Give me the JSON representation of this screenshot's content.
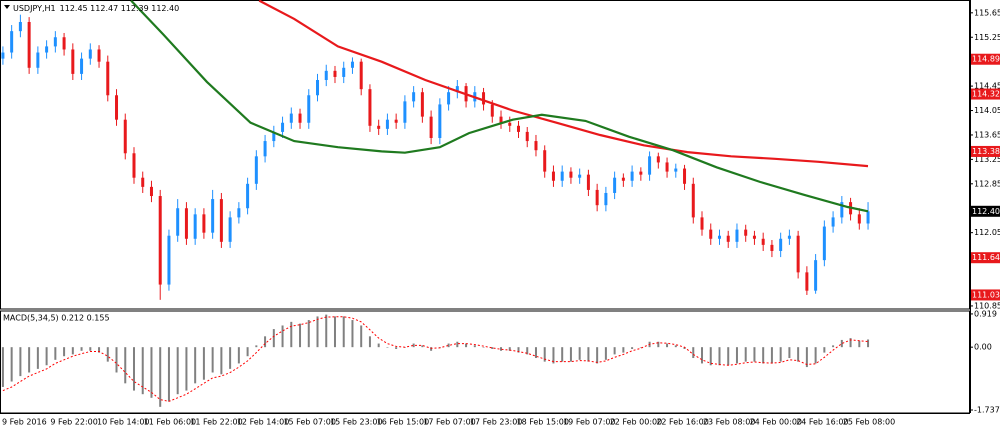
{
  "chart_data": [
    {
      "type": "candlestick",
      "title": "USDJPY,H1",
      "quote": "112.45 112.47 112.39 112.40",
      "x": [
        0,
        3,
        6,
        9,
        12,
        15,
        18,
        21,
        24,
        27,
        30,
        33,
        36,
        39,
        42,
        45,
        48,
        51,
        54,
        57,
        60,
        63,
        66,
        69,
        72,
        75,
        78,
        81,
        84,
        87,
        90,
        93,
        96,
        99,
        102,
        105,
        108,
        111,
        114,
        117,
        120,
        123,
        126,
        129,
        132,
        135,
        138,
        141,
        144,
        147,
        150,
        153,
        156,
        159,
        162,
        165,
        168,
        171,
        174,
        177,
        180,
        183,
        186,
        189,
        192,
        195,
        198,
        201,
        204,
        207,
        210,
        213,
        216,
        219,
        222,
        225,
        228,
        231,
        234,
        237,
        240,
        243,
        246,
        249,
        252,
        255,
        258,
        261,
        264,
        267,
        270,
        273,
        276,
        279,
        282,
        285,
        288,
        291,
        294,
        297
      ],
      "open": [
        114.9,
        115.0,
        115.35,
        115.5,
        114.75,
        115.0,
        115.1,
        115.25,
        115.05,
        114.65,
        114.9,
        115.05,
        114.85,
        114.3,
        113.9,
        113.35,
        112.95,
        112.8,
        112.65,
        111.2,
        112.0,
        112.45,
        111.95,
        112.35,
        112.05,
        112.6,
        111.9,
        112.3,
        112.45,
        112.85,
        113.3,
        113.55,
        113.7,
        113.85,
        114.0,
        113.85,
        114.3,
        114.55,
        114.7,
        114.6,
        114.75,
        114.85,
        114.4,
        113.8,
        113.75,
        113.9,
        113.85,
        114.2,
        114.35,
        113.95,
        113.6,
        114.15,
        114.35,
        114.45,
        114.2,
        114.35,
        114.15,
        113.95,
        113.85,
        113.8,
        113.7,
        113.55,
        113.4,
        113.05,
        112.9,
        113.05,
        112.95,
        113.0,
        112.75,
        112.5,
        112.7,
        112.95,
        112.9,
        113.05,
        113.0,
        113.3,
        113.2,
        113.05,
        113.1,
        112.85,
        112.3,
        112.1,
        111.95,
        112.0,
        111.9,
        112.1,
        112.0,
        111.95,
        111.85,
        111.75,
        111.95,
        112.0,
        111.4,
        111.1,
        111.6,
        112.15,
        112.3,
        112.55,
        112.35,
        112.2
      ],
      "high": [
        115.1,
        115.45,
        115.62,
        115.58,
        115.1,
        115.2,
        115.35,
        115.32,
        115.15,
        115.0,
        115.15,
        115.12,
        114.95,
        114.4,
        114.0,
        113.45,
        113.05,
        112.9,
        112.75,
        112.1,
        112.6,
        112.55,
        112.45,
        112.45,
        112.75,
        112.7,
        112.4,
        112.55,
        112.95,
        113.4,
        113.65,
        113.8,
        113.95,
        114.1,
        114.08,
        114.4,
        114.65,
        114.8,
        114.78,
        114.85,
        114.92,
        114.9,
        114.48,
        113.9,
        114.0,
        114.0,
        114.3,
        114.45,
        114.42,
        114.05,
        114.25,
        114.45,
        114.55,
        114.5,
        114.45,
        114.42,
        114.22,
        114.05,
        113.95,
        113.88,
        113.78,
        113.65,
        113.48,
        113.15,
        113.15,
        113.12,
        113.1,
        113.08,
        112.85,
        112.8,
        113.05,
        113.02,
        113.15,
        113.12,
        113.38,
        113.36,
        113.28,
        113.18,
        113.16,
        112.95,
        112.4,
        112.2,
        112.1,
        112.08,
        112.2,
        112.18,
        112.08,
        112.05,
        111.93,
        112.05,
        112.1,
        112.08,
        111.5,
        111.7,
        112.25,
        112.4,
        112.65,
        112.62,
        112.45,
        112.55
      ],
      "low": [
        114.8,
        114.9,
        115.25,
        114.65,
        114.65,
        114.9,
        115.0,
        114.95,
        114.55,
        114.55,
        114.8,
        114.75,
        114.2,
        113.8,
        113.25,
        112.85,
        112.7,
        112.55,
        110.95,
        111.1,
        111.9,
        111.85,
        111.85,
        111.95,
        111.95,
        111.8,
        111.8,
        112.2,
        112.35,
        112.75,
        113.2,
        113.45,
        113.6,
        113.75,
        113.75,
        113.75,
        114.2,
        114.45,
        114.5,
        114.5,
        114.65,
        114.3,
        113.7,
        113.65,
        113.65,
        113.75,
        113.75,
        114.1,
        113.85,
        113.5,
        113.5,
        114.05,
        114.25,
        114.1,
        114.1,
        114.05,
        113.85,
        113.75,
        113.7,
        113.6,
        113.45,
        113.3,
        112.95,
        112.8,
        112.8,
        112.85,
        112.85,
        112.65,
        112.4,
        112.4,
        112.6,
        112.8,
        112.8,
        112.9,
        112.9,
        113.1,
        112.95,
        112.95,
        112.75,
        112.2,
        112.0,
        111.85,
        111.85,
        111.8,
        111.8,
        111.9,
        111.85,
        111.75,
        111.65,
        111.65,
        111.85,
        111.3,
        111.03,
        111.05,
        111.5,
        112.05,
        112.2,
        112.25,
        112.1,
        112.1
      ],
      "close": [
        115.0,
        115.35,
        115.5,
        114.75,
        115.0,
        115.1,
        115.25,
        115.05,
        114.65,
        114.9,
        115.05,
        114.85,
        114.3,
        113.9,
        113.35,
        112.95,
        112.8,
        112.65,
        111.2,
        112.0,
        112.45,
        111.95,
        112.35,
        112.05,
        112.6,
        111.9,
        112.3,
        112.45,
        112.85,
        113.3,
        113.55,
        113.7,
        113.85,
        114.0,
        113.85,
        114.3,
        114.55,
        114.7,
        114.6,
        114.75,
        114.85,
        114.4,
        113.8,
        113.75,
        113.9,
        113.85,
        114.2,
        114.35,
        113.95,
        113.6,
        114.15,
        114.35,
        114.45,
        114.2,
        114.35,
        114.15,
        113.95,
        113.85,
        113.8,
        113.7,
        113.55,
        113.4,
        113.05,
        112.9,
        113.05,
        112.95,
        113.0,
        112.75,
        112.5,
        112.7,
        112.95,
        112.9,
        113.05,
        113.0,
        113.3,
        113.2,
        113.05,
        113.1,
        112.85,
        112.3,
        112.1,
        111.95,
        112.0,
        111.9,
        112.1,
        112.0,
        111.95,
        111.85,
        111.75,
        111.95,
        112.0,
        111.4,
        111.1,
        111.6,
        112.15,
        112.3,
        112.55,
        112.35,
        112.2,
        112.4
      ],
      "up_color": "#1e90ff",
      "down_color": "#e8191c",
      "lines": [
        {
          "color": "#e8191c",
          "x": [
            88,
            100,
            115,
            130,
            145,
            160,
            175,
            190,
            205,
            220,
            235,
            250,
            265,
            280,
            297
          ],
          "values": [
            115.85,
            115.55,
            115.1,
            114.85,
            114.55,
            114.3,
            114.05,
            113.85,
            113.65,
            113.48,
            113.37,
            113.3,
            113.26,
            113.21,
            113.14
          ]
        },
        {
          "color": "#1f7a1f",
          "x": [
            44,
            55,
            70,
            85,
            100,
            115,
            130,
            138,
            150,
            160,
            175,
            185,
            200,
            215,
            230,
            245,
            260,
            275,
            290,
            297
          ],
          "values": [
            115.85,
            115.3,
            114.52,
            113.85,
            113.55,
            113.45,
            113.38,
            113.36,
            113.45,
            113.68,
            113.9,
            113.98,
            113.88,
            113.62,
            113.4,
            113.12,
            112.88,
            112.67,
            112.47,
            112.4
          ]
        }
      ],
      "levels": [
        114.89,
        114.32,
        113.38,
        111.64,
        111.03
      ],
      "level_color": "#e8191c",
      "last_price": {
        "value": 112.4,
        "label": "112.40"
      },
      "last_price_color": "#000000",
      "xlim": [
        -1,
        332
      ],
      "xticks": [
        {
          "value": 0,
          "label": "9 Feb 2016"
        },
        {
          "value": 17,
          "label": "9 Feb 22:00"
        },
        {
          "value": 33,
          "label": "10 Feb 14:00"
        },
        {
          "value": 49,
          "label": "11 Feb 06:00"
        },
        {
          "value": 65,
          "label": "11 Feb 22:00"
        },
        {
          "value": 81,
          "label": "12 Feb 14:00"
        },
        {
          "value": 97,
          "label": "15 Feb 07:00"
        },
        {
          "value": 113,
          "label": "15 Feb 23:00"
        },
        {
          "value": 129,
          "label": "16 Feb 15:00"
        },
        {
          "value": 145,
          "label": "17 Feb 07:00"
        },
        {
          "value": 161,
          "label": "17 Feb 23:00"
        },
        {
          "value": 177,
          "label": "18 Feb 15:00"
        },
        {
          "value": 193,
          "label": "19 Feb 07:00"
        },
        {
          "value": 209,
          "label": "22 Feb 00:00"
        },
        {
          "value": 225,
          "label": "22 Feb 16:00"
        },
        {
          "value": 241,
          "label": "23 Feb 08:00"
        },
        {
          "value": 257,
          "label": "24 Feb 00:00"
        },
        {
          "value": 273,
          "label": "24 Feb 16:00"
        },
        {
          "value": 289,
          "label": "25 Feb 08:00"
        }
      ],
      "ylim": [
        110.8,
        115.86
      ],
      "yticks": [
        115.65,
        115.25,
        114.45,
        114.05,
        113.65,
        113.25,
        112.85,
        112.05,
        110.85
      ],
      "grid": true
    },
    {
      "type": "macd",
      "title": "MACD(5,34,5) 0.212 0.155",
      "histogram": [
        -1.1,
        -0.95,
        -0.8,
        -0.7,
        -0.6,
        -0.5,
        -0.35,
        -0.25,
        -0.2,
        -0.1,
        -0.1,
        -0.15,
        -0.4,
        -0.7,
        -1.0,
        -1.2,
        -1.3,
        -1.4,
        -1.65,
        -1.5,
        -1.3,
        -1.2,
        -1.0,
        -0.9,
        -0.7,
        -0.75,
        -0.6,
        -0.45,
        -0.25,
        0.05,
        0.3,
        0.5,
        0.6,
        0.7,
        0.65,
        0.75,
        0.85,
        0.9,
        0.85,
        0.85,
        0.75,
        0.6,
        0.3,
        0.1,
        0.0,
        -0.05,
        0.0,
        0.1,
        0.05,
        -0.1,
        0.0,
        0.1,
        0.15,
        0.1,
        0.05,
        0.0,
        -0.05,
        -0.1,
        -0.1,
        -0.15,
        -0.2,
        -0.3,
        -0.4,
        -0.45,
        -0.4,
        -0.4,
        -0.35,
        -0.4,
        -0.45,
        -0.35,
        -0.2,
        -0.15,
        -0.05,
        0.0,
        0.15,
        0.15,
        0.1,
        0.05,
        -0.05,
        -0.3,
        -0.45,
        -0.5,
        -0.5,
        -0.5,
        -0.45,
        -0.4,
        -0.4,
        -0.45,
        -0.45,
        -0.4,
        -0.3,
        -0.4,
        -0.55,
        -0.45,
        -0.15,
        0.05,
        0.2,
        0.25,
        0.18,
        0.212
      ],
      "signal": [
        -1.2,
        -1.1,
        -0.95,
        -0.8,
        -0.7,
        -0.6,
        -0.45,
        -0.35,
        -0.25,
        -0.18,
        -0.12,
        -0.12,
        -0.25,
        -0.45,
        -0.7,
        -0.95,
        -1.1,
        -1.25,
        -1.45,
        -1.5,
        -1.4,
        -1.3,
        -1.15,
        -1.0,
        -0.85,
        -0.8,
        -0.7,
        -0.55,
        -0.38,
        -0.15,
        0.1,
        0.3,
        0.45,
        0.58,
        0.62,
        0.68,
        0.77,
        0.83,
        0.84,
        0.84,
        0.8,
        0.7,
        0.48,
        0.25,
        0.1,
        0.02,
        0.0,
        0.05,
        0.05,
        -0.03,
        -0.02,
        0.05,
        0.1,
        0.1,
        0.07,
        0.03,
        -0.02,
        -0.06,
        -0.08,
        -0.12,
        -0.17,
        -0.25,
        -0.33,
        -0.4,
        -0.4,
        -0.4,
        -0.37,
        -0.38,
        -0.42,
        -0.38,
        -0.28,
        -0.2,
        -0.1,
        -0.03,
        0.08,
        0.12,
        0.11,
        0.07,
        0.0,
        -0.2,
        -0.35,
        -0.45,
        -0.48,
        -0.5,
        -0.47,
        -0.43,
        -0.41,
        -0.43,
        -0.44,
        -0.42,
        -0.35,
        -0.37,
        -0.48,
        -0.46,
        -0.28,
        -0.08,
        0.1,
        0.2,
        0.18,
        0.155
      ],
      "histogram_color": "#808080",
      "signal_color": "#ff0000",
      "ylim": [
        -1.82,
        1.0
      ],
      "yticks": [
        0.919,
        {
          "value": 0,
          "label": "0.00"
        },
        -1.737
      ]
    }
  ]
}
